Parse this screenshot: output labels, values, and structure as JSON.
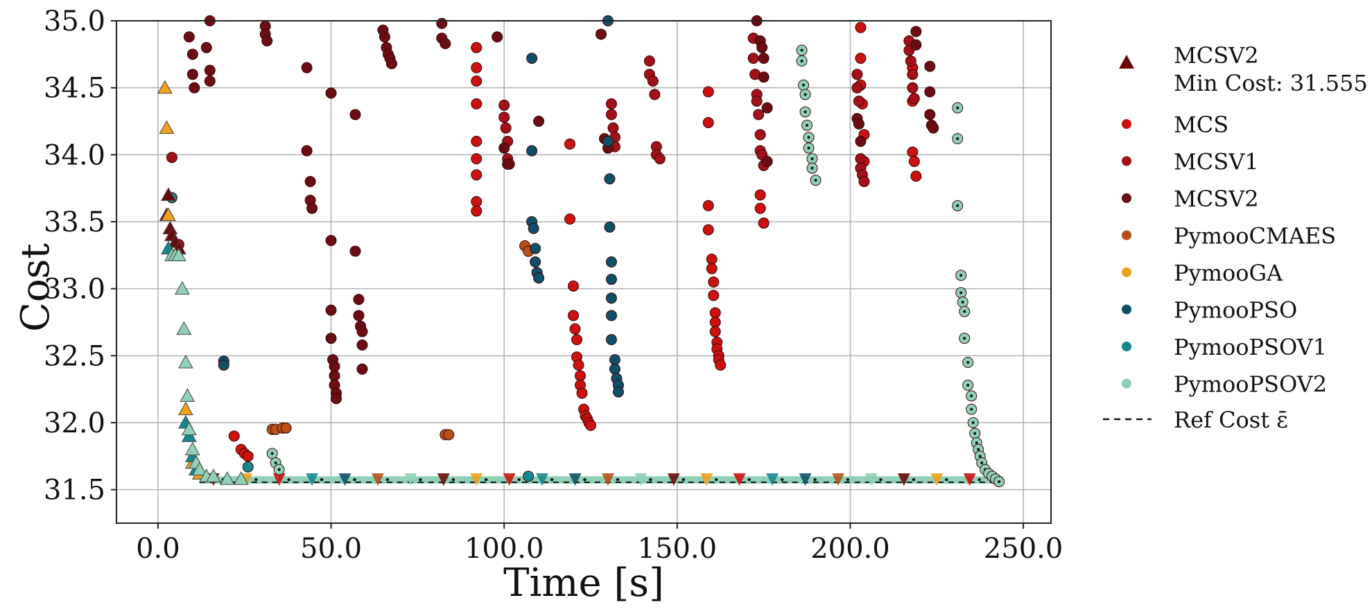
{
  "chart_data": {
    "type": "scatter",
    "xlabel": "Time [s]",
    "ylabel": "Cost",
    "xlim": [
      -12,
      258
    ],
    "ylim": [
      31.25,
      35.0
    ],
    "xticks": [
      0,
      50,
      100,
      150,
      200,
      250
    ],
    "xtick_labels": [
      "0.0",
      "50.0",
      "100.0",
      "150.0",
      "200.0",
      "250.0"
    ],
    "yticks": [
      31.5,
      32.0,
      32.5,
      33.0,
      33.5,
      34.0,
      34.5,
      35.0
    ],
    "ytick_labels": [
      "31.5",
      "32.0",
      "32.5",
      "33.0",
      "33.5",
      "34.0",
      "34.5",
      "35.0"
    ],
    "grid": true,
    "legend_position": "right, outside plot",
    "legend": [
      {
        "label": "MCSV2",
        "label2": "Min Cost: 31.555",
        "marker": "triangle",
        "color": "#6b0a0a"
      },
      {
        "label": "MCS",
        "marker": "circle",
        "color": "#cc1111"
      },
      {
        "label": "MCSV1",
        "marker": "circle",
        "color": "#a3101a"
      },
      {
        "label": "MCSV2",
        "marker": "circle",
        "color": "#6b0d14"
      },
      {
        "label": "PymooCMAES",
        "marker": "circle",
        "color": "#b8501a"
      },
      {
        "label": "PymooGA",
        "marker": "circle",
        "color": "#f0a01c"
      },
      {
        "label": "PymooPSO",
        "marker": "circle",
        "color": "#0f5068"
      },
      {
        "label": "PymooPSOV1",
        "marker": "circle",
        "color": "#17878f"
      },
      {
        "label": "PymooPSOV2",
        "marker": "circle",
        "color": "#8fd0b6"
      },
      {
        "label": "Ref Cost ε̄",
        "marker": "dashed-line",
        "color": "#111111"
      }
    ],
    "ref_cost": 31.555,
    "triangle_series": [
      {
        "name": "MCSV2",
        "color": "#6b0a0a",
        "points": [
          [
            3,
            33.7
          ],
          [
            3.5,
            33.45
          ],
          [
            4,
            33.4
          ],
          [
            5,
            33.35
          ],
          [
            6,
            33.3
          ],
          [
            2.5,
            33.55
          ]
        ]
      },
      {
        "name": "PymooGA",
        "color": "#f0a01c",
        "points": [
          [
            2,
            34.5
          ],
          [
            2.5,
            34.2
          ],
          [
            3,
            33.55
          ],
          [
            8,
            32.1
          ],
          [
            10,
            31.7
          ],
          [
            12,
            31.62
          ]
        ]
      },
      {
        "name": "PymooPSOV1",
        "color": "#17878f",
        "points": [
          [
            3,
            33.3
          ],
          [
            8,
            32.0
          ],
          [
            9,
            31.9
          ],
          [
            10,
            31.75
          ],
          [
            11,
            31.65
          ]
        ]
      },
      {
        "name": "PymooPSOV2",
        "color": "#8fd0b6",
        "points": [
          [
            4,
            33.25
          ],
          [
            5,
            33.25
          ],
          [
            6,
            33.25
          ],
          [
            7,
            33.0
          ],
          [
            7.5,
            32.7
          ],
          [
            8,
            32.45
          ],
          [
            8.5,
            32.2
          ],
          [
            9,
            31.95
          ],
          [
            10,
            31.8
          ],
          [
            11,
            31.7
          ],
          [
            12,
            31.65
          ],
          [
            14,
            31.6
          ],
          [
            16,
            31.6
          ],
          [
            20,
            31.58
          ],
          [
            24,
            31.58
          ]
        ]
      }
    ],
    "scatter_series": [
      {
        "name": "MCS",
        "color": "#cc1111",
        "points": [
          [
            22,
            31.9
          ],
          [
            24,
            31.8
          ],
          [
            25,
            31.77
          ],
          [
            26,
            31.75
          ],
          [
            92,
            34.8
          ],
          [
            92,
            34.65
          ],
          [
            92,
            34.55
          ],
          [
            92,
            34.38
          ],
          [
            92,
            34.1
          ],
          [
            92,
            33.97
          ],
          [
            92,
            33.85
          ],
          [
            92,
            33.65
          ],
          [
            92,
            33.58
          ],
          [
            119,
            34.08
          ],
          [
            119,
            33.52
          ],
          [
            120,
            33.02
          ],
          [
            120,
            32.8
          ],
          [
            120.5,
            32.7
          ],
          [
            121,
            32.62
          ],
          [
            121,
            32.49
          ],
          [
            121.5,
            32.43
          ],
          [
            122,
            32.35
          ],
          [
            122,
            32.28
          ],
          [
            122.5,
            32.22
          ],
          [
            123,
            32.1
          ],
          [
            123.5,
            32.05
          ],
          [
            124,
            32.03
          ],
          [
            124.5,
            32.0
          ],
          [
            125,
            31.98
          ],
          [
            159,
            34.47
          ],
          [
            159,
            34.24
          ],
          [
            159,
            33.62
          ],
          [
            159,
            33.44
          ],
          [
            160,
            33.22
          ],
          [
            160,
            33.15
          ],
          [
            160.5,
            33.05
          ],
          [
            160.5,
            32.95
          ],
          [
            161,
            32.82
          ],
          [
            161,
            32.75
          ],
          [
            161,
            32.68
          ],
          [
            161.5,
            32.6
          ],
          [
            161.5,
            32.55
          ],
          [
            162,
            32.5
          ],
          [
            162,
            32.47
          ],
          [
            162.5,
            32.43
          ],
          [
            174,
            33.7
          ],
          [
            174,
            33.6
          ],
          [
            175,
            33.49
          ],
          [
            203,
            34.95
          ],
          [
            203,
            34.72
          ],
          [
            203,
            34.52
          ],
          [
            203.5,
            34.38
          ],
          [
            204,
            34.15
          ],
          [
            204,
            33.95
          ],
          [
            218,
            34.65
          ],
          [
            218,
            34.4
          ],
          [
            218,
            34.02
          ],
          [
            218.5,
            33.95
          ],
          [
            219,
            33.84
          ]
        ]
      },
      {
        "name": "MCSV1",
        "color": "#a3101a",
        "points": [
          [
            4,
            33.98
          ],
          [
            6,
            33.33
          ],
          [
            100,
            34.37
          ],
          [
            100,
            34.28
          ],
          [
            100.5,
            34.2
          ],
          [
            101,
            34.1
          ],
          [
            101,
            33.97
          ],
          [
            101.5,
            33.93
          ],
          [
            131,
            34.38
          ],
          [
            131,
            34.3
          ],
          [
            131.5,
            34.2
          ],
          [
            132,
            34.13
          ],
          [
            132,
            34.06
          ],
          [
            142,
            34.7
          ],
          [
            142,
            34.6
          ],
          [
            143,
            34.55
          ],
          [
            143.5,
            34.45
          ],
          [
            144,
            34.06
          ],
          [
            144,
            34.0
          ],
          [
            145,
            33.97
          ],
          [
            172,
            34.87
          ],
          [
            172,
            34.72
          ],
          [
            172.5,
            34.6
          ],
          [
            173,
            34.45
          ],
          [
            173,
            34.4
          ],
          [
            173.5,
            34.3
          ],
          [
            174,
            34.15
          ],
          [
            174,
            34.03
          ],
          [
            174.5,
            34.0
          ],
          [
            175,
            33.92
          ],
          [
            202,
            34.6
          ],
          [
            202,
            34.5
          ],
          [
            202.5,
            34.4
          ],
          [
            203,
            33.97
          ],
          [
            203,
            33.9
          ],
          [
            203.5,
            33.85
          ],
          [
            204,
            33.8
          ],
          [
            217,
            34.85
          ],
          [
            217,
            34.78
          ],
          [
            217.5,
            34.7
          ],
          [
            218,
            34.6
          ],
          [
            218,
            34.5
          ],
          [
            218.5,
            34.42
          ]
        ]
      },
      {
        "name": "MCSV2",
        "color": "#6b0d14",
        "points": [
          [
            9,
            34.88
          ],
          [
            10,
            34.75
          ],
          [
            10,
            34.6
          ],
          [
            10.5,
            34.5
          ],
          [
            14,
            34.8
          ],
          [
            15,
            34.63
          ],
          [
            15,
            34.55
          ],
          [
            15,
            35.0
          ],
          [
            31,
            34.96
          ],
          [
            31,
            34.9
          ],
          [
            31.5,
            34.85
          ],
          [
            43,
            34.65
          ],
          [
            43,
            34.03
          ],
          [
            44,
            33.8
          ],
          [
            44,
            33.66
          ],
          [
            44.5,
            33.6
          ],
          [
            50,
            34.46
          ],
          [
            50,
            33.36
          ],
          [
            50,
            32.84
          ],
          [
            50,
            32.63
          ],
          [
            50.5,
            32.47
          ],
          [
            51,
            32.42
          ],
          [
            51,
            32.35
          ],
          [
            51,
            32.28
          ],
          [
            51.5,
            32.22
          ],
          [
            51.5,
            32.18
          ],
          [
            57,
            34.3
          ],
          [
            57,
            33.28
          ],
          [
            58,
            32.92
          ],
          [
            58,
            32.8
          ],
          [
            58.5,
            32.72
          ],
          [
            59,
            32.68
          ],
          [
            59,
            32.58
          ],
          [
            59,
            32.4
          ],
          [
            65,
            34.93
          ],
          [
            65.5,
            34.88
          ],
          [
            66,
            34.8
          ],
          [
            66.5,
            34.75
          ],
          [
            67,
            34.72
          ],
          [
            67.5,
            34.68
          ],
          [
            82,
            34.98
          ],
          [
            82,
            34.87
          ],
          [
            83,
            34.83
          ],
          [
            98,
            34.88
          ],
          [
            100,
            34.05
          ],
          [
            101,
            33.93
          ],
          [
            110,
            34.25
          ],
          [
            128,
            34.9
          ],
          [
            129,
            34.12
          ],
          [
            130,
            34.05
          ],
          [
            173,
            35.0
          ],
          [
            174,
            34.85
          ],
          [
            174.5,
            34.8
          ],
          [
            175,
            34.72
          ],
          [
            175,
            34.58
          ],
          [
            176,
            34.35
          ],
          [
            176,
            33.95
          ],
          [
            202,
            34.27
          ],
          [
            202.5,
            34.23
          ],
          [
            203,
            34.1
          ],
          [
            219,
            34.92
          ],
          [
            219,
            34.82
          ],
          [
            223,
            34.66
          ],
          [
            223,
            34.47
          ],
          [
            223,
            34.3
          ],
          [
            223.5,
            34.22
          ],
          [
            224,
            34.2
          ]
        ]
      },
      {
        "name": "PymooCMAES",
        "color": "#b8501a",
        "points": [
          [
            33,
            31.95
          ],
          [
            34,
            31.95
          ],
          [
            36,
            31.96
          ],
          [
            37,
            31.96
          ],
          [
            83,
            31.91
          ],
          [
            84,
            31.91
          ],
          [
            106,
            33.32
          ],
          [
            107,
            33.28
          ]
        ]
      },
      {
        "name": "PymooPSO",
        "color": "#0f5068",
        "points": [
          [
            19,
            32.46
          ],
          [
            19,
            32.43
          ],
          [
            108,
            34.72
          ],
          [
            108,
            34.03
          ],
          [
            108,
            33.5
          ],
          [
            108.5,
            33.45
          ],
          [
            109,
            33.3
          ],
          [
            109,
            33.2
          ],
          [
            109.5,
            33.12
          ],
          [
            110,
            33.08
          ],
          [
            130,
            35.0
          ],
          [
            130,
            34.1
          ],
          [
            130.5,
            33.82
          ],
          [
            130.5,
            33.46
          ],
          [
            131,
            33.2
          ],
          [
            131,
            33.07
          ],
          [
            131,
            32.93
          ],
          [
            131,
            32.8
          ],
          [
            131,
            32.62
          ],
          [
            132,
            32.47
          ],
          [
            132,
            32.4
          ],
          [
            132.5,
            32.33
          ],
          [
            133,
            32.28
          ],
          [
            133,
            32.23
          ]
        ]
      },
      {
        "name": "PymooPSOV1",
        "color": "#17878f",
        "points": [
          [
            4,
            33.68
          ],
          [
            26,
            31.67
          ],
          [
            107,
            31.6
          ]
        ]
      },
      {
        "name": "PymooPSOV2",
        "color": "#8fd0b6",
        "points": [
          [
            33,
            31.77
          ],
          [
            34,
            31.7
          ],
          [
            35,
            31.65
          ],
          [
            186,
            34.78
          ],
          [
            186,
            34.7
          ],
          [
            186.5,
            34.52
          ],
          [
            187,
            34.45
          ],
          [
            187,
            34.32
          ],
          [
            187.5,
            34.22
          ],
          [
            188,
            34.13
          ],
          [
            188,
            34.05
          ],
          [
            189,
            33.97
          ],
          [
            189,
            33.9
          ],
          [
            190,
            33.81
          ],
          [
            231,
            34.35
          ],
          [
            231,
            34.12
          ],
          [
            231,
            33.62
          ],
          [
            232,
            33.1
          ],
          [
            232,
            32.97
          ],
          [
            232.5,
            32.9
          ],
          [
            233,
            32.83
          ],
          [
            233,
            32.63
          ],
          [
            234,
            32.45
          ],
          [
            234,
            32.28
          ],
          [
            235,
            32.2
          ],
          [
            235,
            32.1
          ],
          [
            235.5,
            32.0
          ],
          [
            236,
            31.92
          ],
          [
            236.5,
            31.85
          ],
          [
            237,
            31.8
          ],
          [
            237.5,
            31.75
          ],
          [
            238,
            31.7
          ],
          [
            239,
            31.65
          ],
          [
            240,
            31.62
          ],
          [
            241,
            31.6
          ],
          [
            242,
            31.58
          ],
          [
            243,
            31.56
          ]
        ]
      }
    ],
    "bottom_band": {
      "x_start": 12,
      "x_end": 244,
      "y_top": 31.6,
      "y_bottom": 31.545
    }
  }
}
